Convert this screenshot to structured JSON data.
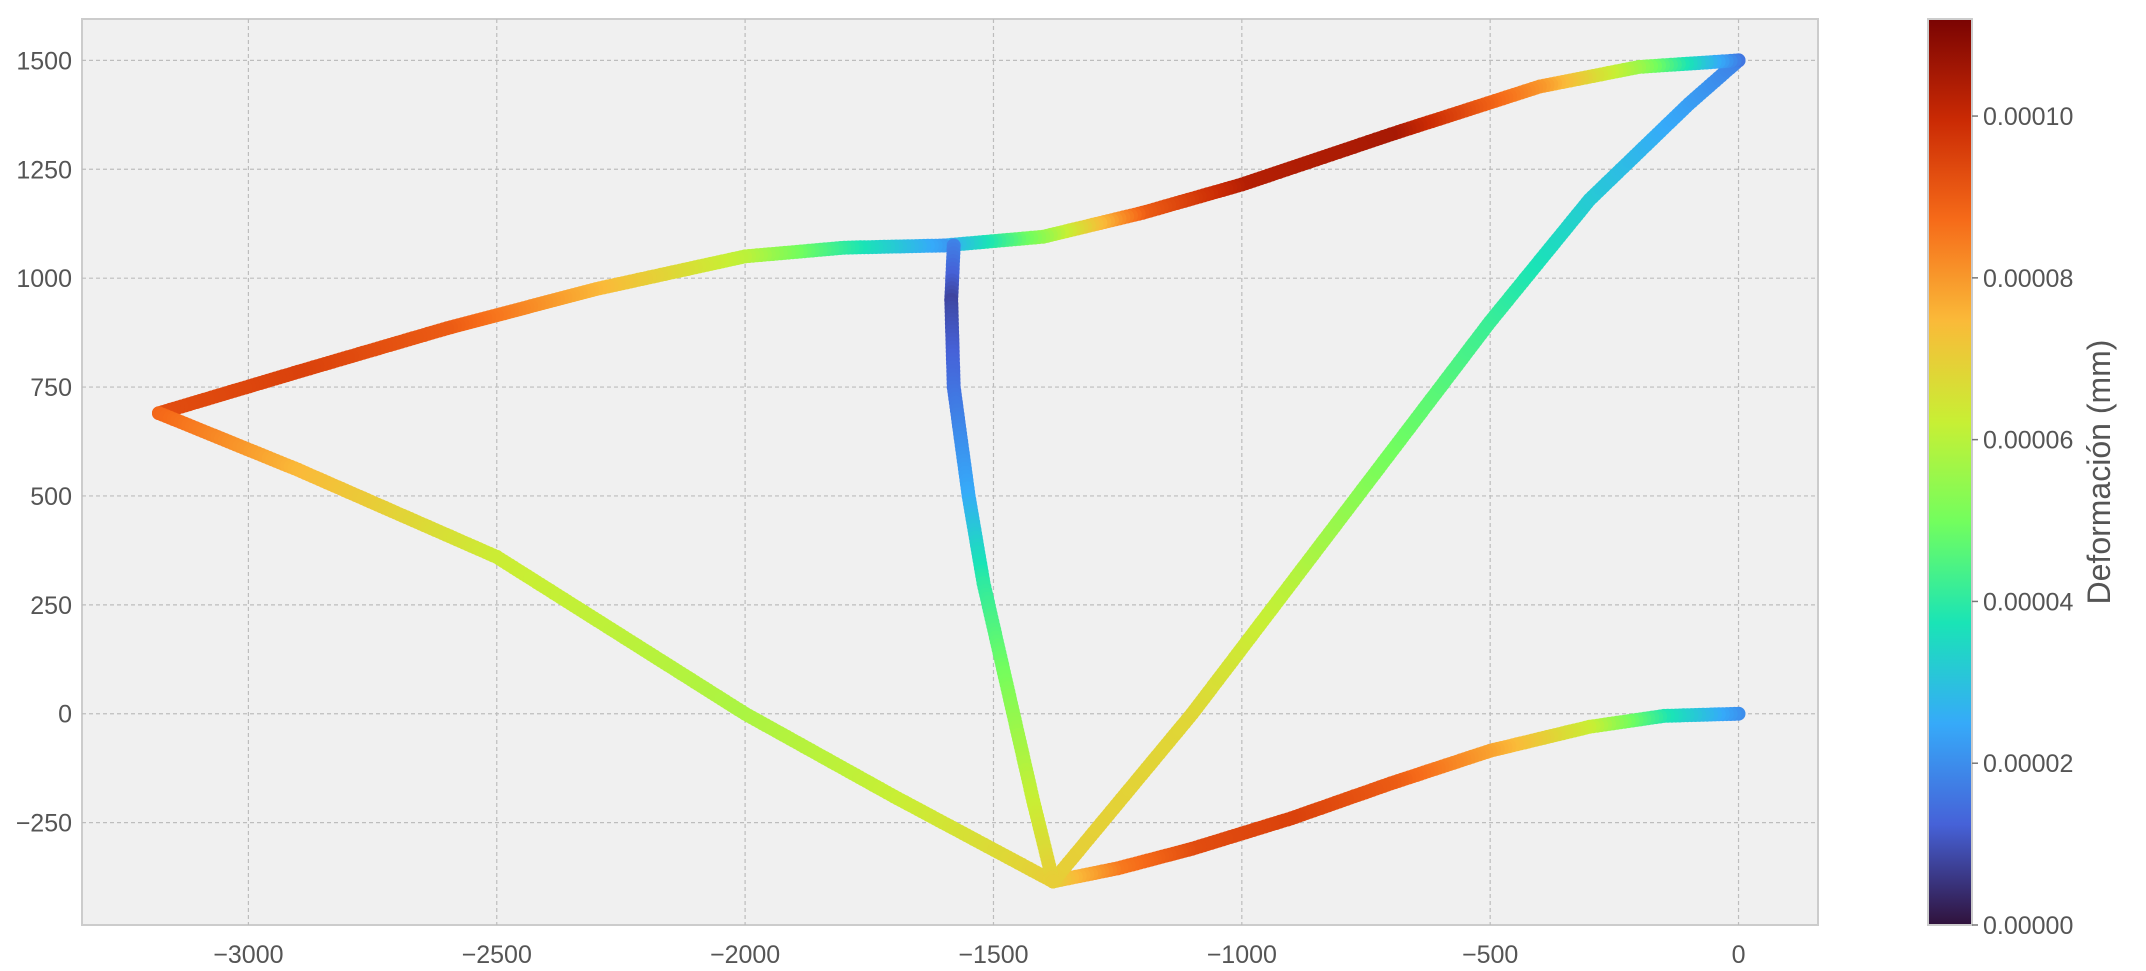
{
  "chart_data": {
    "type": "scatter",
    "title": "",
    "xlabel": "",
    "ylabel": "",
    "xlim": [
      -3335,
      160
    ],
    "ylim": [
      -485,
      1595
    ],
    "x_ticks": [
      -3000,
      -2500,
      -2000,
      -1500,
      -1000,
      -500,
      0
    ],
    "y_ticks": [
      -250,
      0,
      250,
      500,
      750,
      1000,
      1250,
      1500
    ],
    "x_tick_labels": [
      "−3000",
      "−2500",
      "−2000",
      "−1500",
      "−1000",
      "−500",
      "0"
    ],
    "y_tick_labels": [
      "−250",
      "0",
      "250",
      "500",
      "750",
      "1000",
      "1250",
      "1500"
    ],
    "grid": true,
    "colormap": "turbo",
    "colorbar": {
      "label": "Deformación (mm)",
      "min": 0.0,
      "max": 0.000112,
      "ticks": [
        0.0,
        2e-05,
        4e-05,
        6e-05,
        8e-05,
        0.0001
      ],
      "tick_labels": [
        "0.00000",
        "0.00002",
        "0.00004",
        "0.00006",
        "0.00008",
        "0.00010"
      ],
      "colors": [
        "#30123b",
        "#4662d8",
        "#36aaf9",
        "#1ae4b6",
        "#72fe5e",
        "#c8ef34",
        "#faba39",
        "#f66b19",
        "#ca2a04",
        "#7a0403"
      ]
    },
    "members": [
      {
        "name": "bottom chord",
        "points": [
          {
            "x": 0,
            "y": 0,
            "v": 2e-05
          },
          {
            "x": -150,
            "y": -5,
            "v": 3.8e-05
          },
          {
            "x": -300,
            "y": -30,
            "v": 6.2e-05
          },
          {
            "x": -500,
            "y": -85,
            "v": 7.8e-05
          },
          {
            "x": -700,
            "y": -160,
            "v": 9e-05
          },
          {
            "x": -900,
            "y": -240,
            "v": 9.5e-05
          },
          {
            "x": -1100,
            "y": -310,
            "v": 9.3e-05
          },
          {
            "x": -1250,
            "y": -355,
            "v": 8.5e-05
          },
          {
            "x": -1380,
            "y": -385,
            "v": 7e-05
          }
        ]
      },
      {
        "name": "right diagonal",
        "points": [
          {
            "x": -1380,
            "y": -385,
            "v": 7e-05
          },
          {
            "x": -1100,
            "y": 0,
            "v": 6.8e-05
          },
          {
            "x": -900,
            "y": 300,
            "v": 6e-05
          },
          {
            "x": -700,
            "y": 600,
            "v": 5e-05
          },
          {
            "x": -500,
            "y": 900,
            "v": 4.2e-05
          },
          {
            "x": -300,
            "y": 1180,
            "v": 3.2e-05
          },
          {
            "x": -100,
            "y": 1400,
            "v": 2.3e-05
          },
          {
            "x": 0,
            "y": 1500,
            "v": 1.8e-05
          }
        ]
      },
      {
        "name": "top chord right",
        "points": [
          {
            "x": 0,
            "y": 1500,
            "v": 1.6e-05
          },
          {
            "x": -200,
            "y": 1485,
            "v": 5.5e-05
          },
          {
            "x": -400,
            "y": 1440,
            "v": 8e-05
          },
          {
            "x": -700,
            "y": 1330,
            "v": 0.000105
          },
          {
            "x": -1000,
            "y": 1215,
            "v": 0.000103
          },
          {
            "x": -1200,
            "y": 1150,
            "v": 9e-05
          },
          {
            "x": -1400,
            "y": 1095,
            "v": 5.5e-05
          },
          {
            "x": -1600,
            "y": 1075,
            "v": 2.5e-05
          }
        ]
      },
      {
        "name": "top chord left",
        "points": [
          {
            "x": -1600,
            "y": 1075,
            "v": 2.2e-05
          },
          {
            "x": -1800,
            "y": 1070,
            "v": 4e-05
          },
          {
            "x": -2000,
            "y": 1050,
            "v": 6e-05
          },
          {
            "x": -2300,
            "y": 975,
            "v": 7.5e-05
          },
          {
            "x": -2600,
            "y": 885,
            "v": 9e-05
          },
          {
            "x": -2900,
            "y": 785,
            "v": 9.5e-05
          },
          {
            "x": -3180,
            "y": 690,
            "v": 9.3e-05
          }
        ]
      },
      {
        "name": "left diagonal",
        "points": [
          {
            "x": -3180,
            "y": 690,
            "v": 8.8e-05
          },
          {
            "x": -2900,
            "y": 560,
            "v": 7.5e-05
          },
          {
            "x": -2500,
            "y": 360,
            "v": 6.3e-05
          },
          {
            "x": -2000,
            "y": 0,
            "v": 5.8e-05
          },
          {
            "x": -1700,
            "y": -190,
            "v": 6.2e-05
          },
          {
            "x": -1380,
            "y": -385,
            "v": 7e-05
          }
        ]
      },
      {
        "name": "vertical member",
        "points": [
          {
            "x": -1580,
            "y": 1075,
            "v": 1.8e-05
          },
          {
            "x": -1585,
            "y": 950,
            "v": 8e-06
          },
          {
            "x": -1580,
            "y": 750,
            "v": 1.5e-05
          },
          {
            "x": -1550,
            "y": 500,
            "v": 2.5e-05
          },
          {
            "x": -1520,
            "y": 300,
            "v": 4e-05
          },
          {
            "x": -1470,
            "y": 50,
            "v": 5.2e-05
          },
          {
            "x": -1420,
            "y": -200,
            "v": 6.2e-05
          },
          {
            "x": -1380,
            "y": -385,
            "v": 7e-05
          }
        ]
      }
    ]
  }
}
